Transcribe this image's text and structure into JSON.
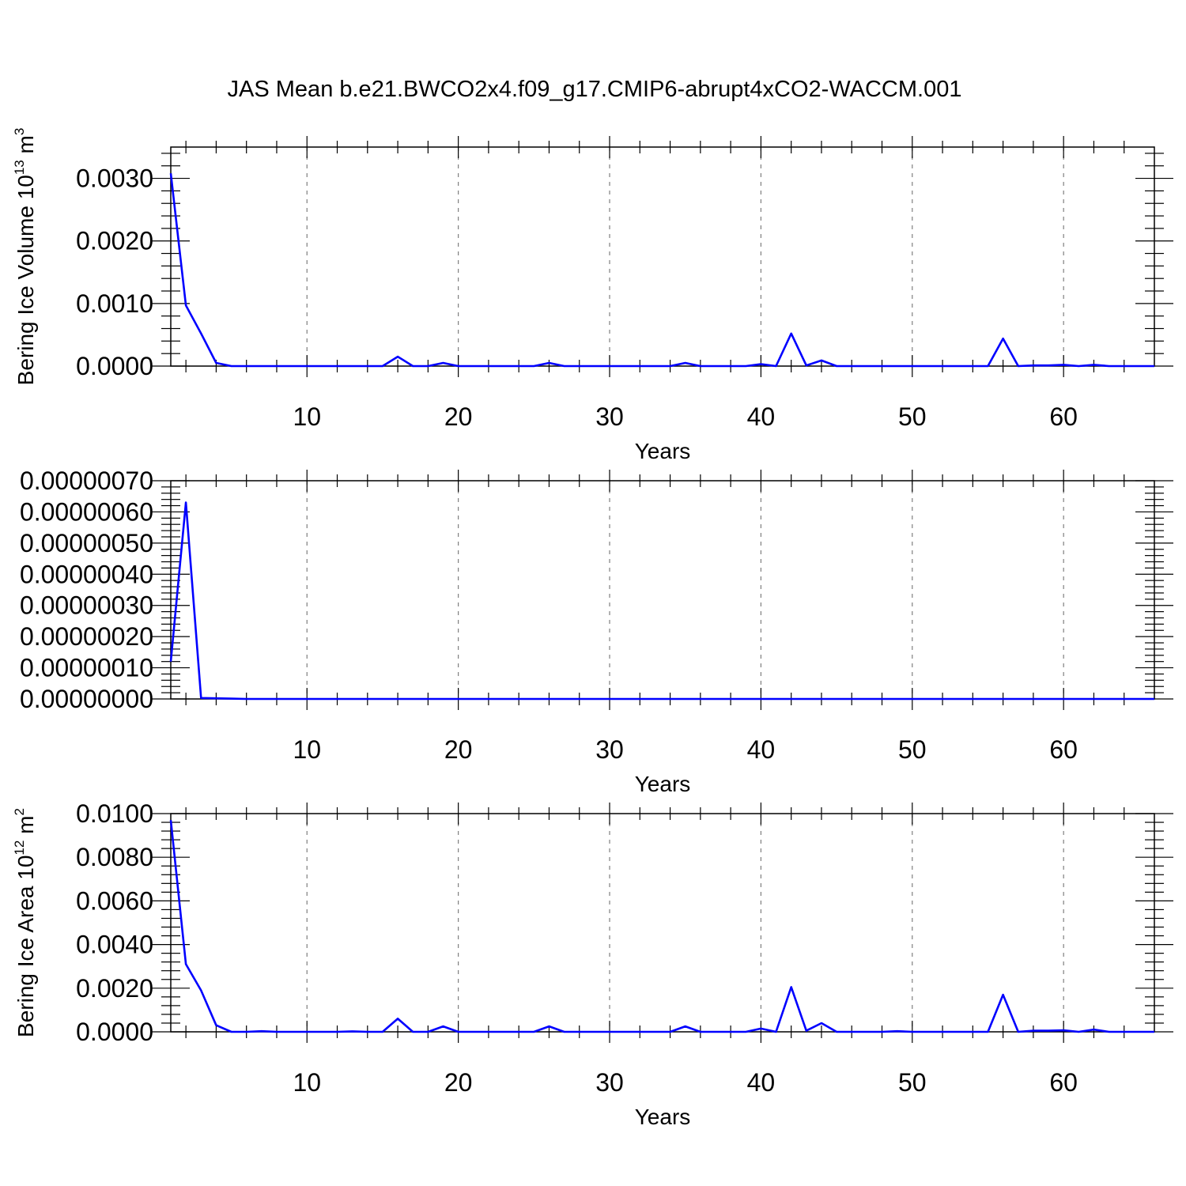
{
  "title": "JAS Mean b.e21.BWCO2x4.f09_g17.CMIP6-abrupt4xCO2-WACCM.001",
  "colors": {
    "line": "#0000ff",
    "frame": "#000000",
    "grid": "#7f7f7f"
  },
  "chart_data": [
    {
      "type": "line",
      "xlabel": "Years",
      "ylabel": {
        "text": "Bering Ice Volume 10",
        "sup": "13",
        "unit": " m",
        "unit_sup": "3"
      },
      "xlim": [
        1,
        66
      ],
      "ylim": [
        0,
        0.0035
      ],
      "xticks": [
        10,
        20,
        30,
        40,
        50,
        60
      ],
      "xtick_labels": [
        "10",
        "20",
        "30",
        "40",
        "50",
        "60"
      ],
      "yticks": [
        0,
        0.001,
        0.002,
        0.003
      ],
      "ytick_labels": [
        "0.0000",
        "0.0010",
        "0.0020",
        "0.0030"
      ],
      "grid": "x-dashed",
      "series": [
        {
          "x": [
            1,
            2,
            3,
            4,
            5,
            6,
            7,
            8,
            9,
            10,
            11,
            12,
            13,
            14,
            15,
            16,
            17,
            18,
            19,
            20,
            21,
            22,
            23,
            24,
            25,
            26,
            27,
            28,
            29,
            30,
            31,
            32,
            33,
            34,
            35,
            36,
            37,
            38,
            39,
            40,
            41,
            42,
            43,
            44,
            45,
            46,
            47,
            48,
            49,
            50,
            51,
            52,
            53,
            54,
            55,
            56,
            57,
            58,
            59,
            60,
            61,
            62,
            63,
            64,
            65,
            66
          ],
          "values": [
            0.00308,
            0.00097,
            0.00052,
            5e-05,
            0,
            0,
            0,
            0,
            0,
            0,
            0,
            0,
            0,
            0,
            0,
            0.00015,
            0,
            0,
            5e-05,
            0,
            0,
            0,
            0,
            0,
            0,
            5e-05,
            0,
            0,
            0,
            0,
            0,
            0,
            0,
            0,
            5e-05,
            0,
            0,
            0,
            0,
            3e-05,
            0,
            0.00052,
            1e-05,
            9e-05,
            0,
            0,
            0,
            0,
            0,
            0,
            0,
            0,
            0,
            0,
            0,
            0.00044,
            0,
            1e-05,
            1e-05,
            2e-05,
            0,
            2e-05,
            0,
            0,
            0,
            0
          ]
        }
      ]
    },
    {
      "type": "line",
      "xlabel": "Years",
      "xlim": [
        1,
        66
      ],
      "ylim": [
        0,
        7e-07
      ],
      "xticks": [
        10,
        20,
        30,
        40,
        50,
        60
      ],
      "xtick_labels": [
        "10",
        "20",
        "30",
        "40",
        "50",
        "60"
      ],
      "yticks": [
        0,
        1e-07,
        2e-07,
        3e-07,
        4e-07,
        5e-07,
        6e-07,
        7e-07
      ],
      "ytick_labels": [
        "0.00000000",
        "0.00000010",
        "0.00000020",
        "0.00000030",
        "0.00000040",
        "0.00000050",
        "0.00000060",
        "0.00000070"
      ],
      "grid": "x-dashed",
      "series": [
        {
          "x": [
            1,
            2,
            3,
            4,
            5,
            6,
            7,
            8,
            9,
            10,
            11,
            12,
            13,
            14,
            15,
            16,
            17,
            18,
            19,
            20,
            21,
            22,
            23,
            24,
            25,
            26,
            27,
            28,
            29,
            30,
            31,
            32,
            33,
            34,
            35,
            36,
            37,
            38,
            39,
            40,
            41,
            42,
            43,
            44,
            45,
            46,
            47,
            48,
            49,
            50,
            51,
            52,
            53,
            54,
            55,
            56,
            57,
            58,
            59,
            60,
            61,
            62,
            63,
            64,
            65,
            66
          ],
          "values": [
            1.2e-07,
            6.3e-07,
            3e-09,
            2e-09,
            1e-09,
            0,
            0,
            0,
            0,
            0,
            0,
            0,
            0,
            0,
            0,
            0,
            0,
            0,
            0,
            0,
            0,
            0,
            0,
            0,
            0,
            0,
            0,
            0,
            0,
            0,
            0,
            0,
            0,
            0,
            0,
            0,
            0,
            0,
            0,
            0,
            0,
            0,
            0,
            0,
            0,
            0,
            0,
            0,
            0,
            0,
            0,
            0,
            0,
            0,
            0,
            0,
            0,
            0,
            0,
            0,
            0,
            0,
            0,
            0,
            0,
            0
          ]
        }
      ]
    },
    {
      "type": "line",
      "xlabel": "Years",
      "ylabel": {
        "text": "Bering Ice Area 10",
        "sup": "12",
        "unit": " m",
        "unit_sup": "2"
      },
      "xlim": [
        1,
        66
      ],
      "ylim": [
        0,
        0.01
      ],
      "xticks": [
        10,
        20,
        30,
        40,
        50,
        60
      ],
      "xtick_labels": [
        "10",
        "20",
        "30",
        "40",
        "50",
        "60"
      ],
      "yticks": [
        0,
        0.002,
        0.004,
        0.006,
        0.008,
        0.01
      ],
      "ytick_labels": [
        "0.0000",
        "0.0020",
        "0.0040",
        "0.0060",
        "0.0080",
        "0.0100"
      ],
      "grid": "x-dashed",
      "series": [
        {
          "x": [
            1,
            2,
            3,
            4,
            5,
            6,
            7,
            8,
            9,
            10,
            11,
            12,
            13,
            14,
            15,
            16,
            17,
            18,
            19,
            20,
            21,
            22,
            23,
            24,
            25,
            26,
            27,
            28,
            29,
            30,
            31,
            32,
            33,
            34,
            35,
            36,
            37,
            38,
            39,
            40,
            41,
            42,
            43,
            44,
            45,
            46,
            47,
            48,
            49,
            50,
            51,
            52,
            53,
            54,
            55,
            56,
            57,
            58,
            59,
            60,
            61,
            62,
            63,
            64,
            65,
            66
          ],
          "values": [
            0.0097,
            0.0031,
            0.0019,
            0.0003,
            0,
            0,
            3e-05,
            0,
            0,
            0,
            0,
            0,
            2e-05,
            0,
            0,
            0.0006,
            0,
            0,
            0.00025,
            0,
            0,
            0,
            0,
            0,
            0,
            0.00025,
            0,
            0,
            0,
            0,
            0,
            0,
            0,
            0,
            0.00025,
            0,
            0,
            0,
            0,
            0.00015,
            0,
            0.00205,
            5e-05,
            0.0004,
            0,
            0,
            0,
            0,
            3e-05,
            0,
            0,
            0,
            0,
            0,
            0,
            0.0017,
            0,
            5e-05,
            5e-05,
            7e-05,
            0,
            0.0001,
            0,
            0,
            0,
            0
          ]
        }
      ]
    }
  ]
}
